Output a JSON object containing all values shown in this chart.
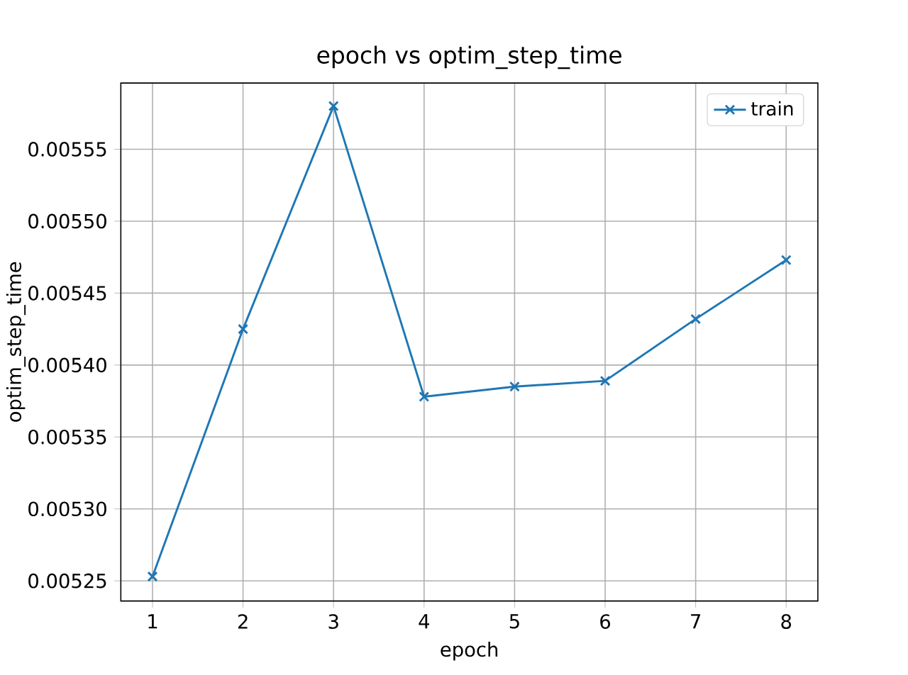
{
  "chart_data": {
    "type": "line",
    "title": "epoch vs optim_step_time",
    "xlabel": "epoch",
    "ylabel": "optim_step_time",
    "x": [
      1,
      2,
      3,
      4,
      5,
      6,
      7,
      8
    ],
    "series": [
      {
        "name": "train",
        "color": "#1f77b4",
        "values": [
          0.005253,
          0.005425,
          0.00558,
          0.005378,
          0.005385,
          0.005389,
          0.005432,
          0.005473
        ]
      }
    ],
    "xlim": [
      0.65,
      8.35
    ],
    "ylim": [
      0.005236,
      0.005596
    ],
    "xticks": [
      1,
      2,
      3,
      4,
      5,
      6,
      7,
      8
    ],
    "yticks": [
      0.00525,
      {
        "value": 0.0053,
        "label": "0.00530"
      },
      0.00535,
      {
        "value": 0.0054,
        "label": "0.00540"
      },
      0.00545,
      {
        "value": 0.0055,
        "label": "0.00550"
      },
      0.00555
    ],
    "grid": true,
    "legend": "top right",
    "marker": "cross",
    "line_style": "solid"
  }
}
